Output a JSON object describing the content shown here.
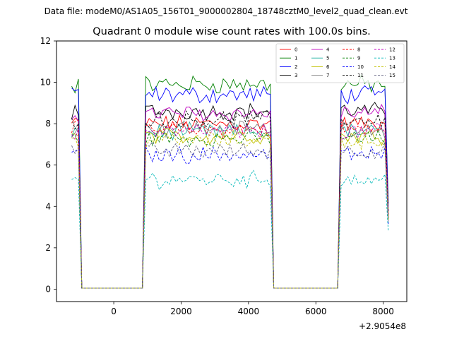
{
  "figure": {
    "suptitle": "Data file: modeM0/AS1A05_156T01_9000002804_18748cztM0_level2_quad_clean.evt"
  },
  "chart_data": {
    "type": "line",
    "title": "Quadrant 0 module wise count rates with 100.0s bins.",
    "xlabel": "",
    "ylabel": "",
    "x_offset_label": "+2.9054e8",
    "xlim": [
      -1700,
      8700
    ],
    "ylim": [
      -0.6,
      12
    ],
    "xticks": [
      0,
      2000,
      4000,
      6000,
      8000
    ],
    "xtick_labels": [
      "0",
      "2000",
      "4000",
      "6000",
      "8000"
    ],
    "yticks": [
      0,
      2,
      4,
      6,
      8,
      10,
      12
    ],
    "ytick_labels": [
      "0",
      "2",
      "4",
      "6",
      "8",
      "10",
      "12"
    ],
    "grid": false,
    "legend_position": "top-right",
    "segments": [
      {
        "start": -1250,
        "end": -1050
      },
      {
        "start": 880,
        "end": 4650
      },
      {
        "start": 6700,
        "end": 8150
      }
    ],
    "bin_width": 100,
    "series": [
      {
        "name": "0",
        "color": "#ff0000",
        "style": "solid",
        "level": 8.0
      },
      {
        "name": "1",
        "color": "#008000",
        "style": "solid",
        "level": 9.9
      },
      {
        "name": "2",
        "color": "#0000ff",
        "style": "solid",
        "level": 9.4
      },
      {
        "name": "3",
        "color": "#000000",
        "style": "solid",
        "level": 8.6
      },
      {
        "name": "4",
        "color": "#c000c0",
        "style": "solid",
        "level": 8.5
      },
      {
        "name": "5",
        "color": "#20b0a0",
        "style": "solid",
        "level": 7.6
      },
      {
        "name": "6",
        "color": "#c0c000",
        "style": "solid",
        "level": 7.4
      },
      {
        "name": "7",
        "color": "#808080",
        "style": "solid",
        "level": 7.8
      },
      {
        "name": "8",
        "color": "#ff0000",
        "style": "dashed",
        "level": 7.7
      },
      {
        "name": "9",
        "color": "#008000",
        "style": "dashed",
        "level": 7.3
      },
      {
        "name": "10",
        "color": "#0000ff",
        "style": "dashed",
        "level": 6.5
      },
      {
        "name": "11",
        "color": "#000000",
        "style": "dashed",
        "level": 8.2
      },
      {
        "name": "12",
        "color": "#c000c0",
        "style": "dashed",
        "level": 7.6
      },
      {
        "name": "13",
        "color": "#00b8b8",
        "style": "dashed",
        "level": 5.3
      },
      {
        "name": "14",
        "color": "#c0c000",
        "style": "dashed",
        "level": 7.2
      },
      {
        "name": "15",
        "color": "#606080",
        "style": "dashed",
        "level": 6.7
      }
    ]
  }
}
